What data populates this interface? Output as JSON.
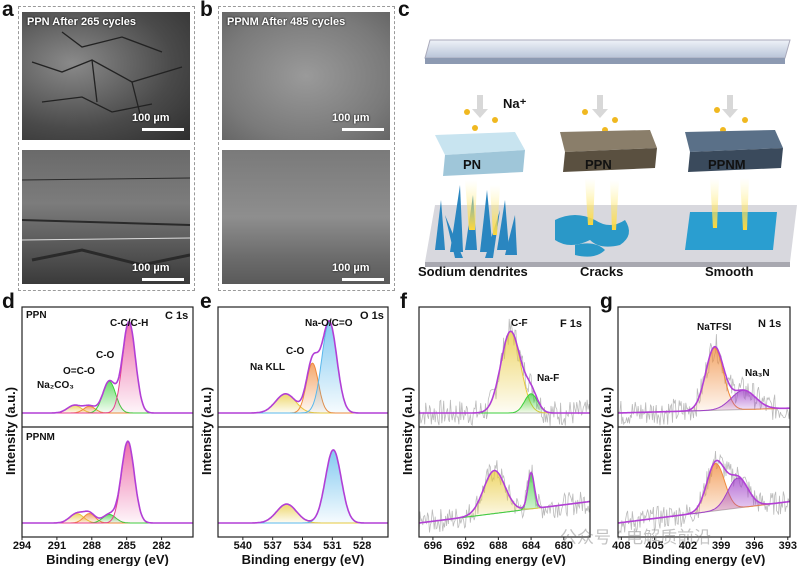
{
  "panels": {
    "a": "a",
    "b": "b",
    "c": "c",
    "d": "d",
    "e": "e",
    "f": "f",
    "g": "g"
  },
  "sem": {
    "a_title": "PPN After 265 cycles",
    "b_title": "PPNM After 485 cycles",
    "scale": "100 µm"
  },
  "schematic": {
    "ion": "Na⁺",
    "membranes": [
      "PN",
      "PPN",
      "PPNM"
    ],
    "outcomes": [
      "Sodium dendrites",
      "Cracks",
      "Smooth"
    ]
  },
  "watermark": "公众号 · 电解质前沿",
  "colors": {
    "envelope": "#b23fd6",
    "yellow": "#e8c93a",
    "orange": "#f08a3a",
    "green": "#3ccf3c",
    "pink": "#e8408f",
    "blue": "#5ab8ec",
    "purple": "#a040c8",
    "raw": "#bbbbbb"
  },
  "chart_data": [
    {
      "id": "d",
      "type": "line",
      "title": "C 1s",
      "xlabel": "Binding energy (eV)",
      "ylabel": "Intensity (a.u.)",
      "xlim": [
        294,
        279.3
      ],
      "ticks": [
        "294",
        "291",
        "288",
        "285",
        "282"
      ],
      "tickvals": [
        294,
        291,
        288,
        285,
        282
      ],
      "samples": [
        {
          "name": "PPN",
          "components": [
            {
              "label": "Na2CO3",
              "center": 289.5,
              "height": 0.08,
              "sigma": 0.6,
              "color": "yellow"
            },
            {
              "label": "O=C-O",
              "center": 288.2,
              "height": 0.07,
              "sigma": 0.5,
              "color": "orange"
            },
            {
              "label": "C-O",
              "center": 286.5,
              "height": 0.33,
              "sigma": 0.55,
              "color": "green"
            },
            {
              "label": "C-C/C-H",
              "center": 284.8,
              "height": 0.95,
              "sigma": 0.55,
              "color": "pink"
            }
          ],
          "noise": false,
          "slope": 0
        },
        {
          "name": "PPNM",
          "components": [
            {
              "label": "Na2CO3",
              "center": 289.3,
              "height": 0.11,
              "sigma": 0.6,
              "color": "yellow"
            },
            {
              "label": "O=C-O",
              "center": 288.2,
              "height": 0.11,
              "sigma": 0.5,
              "color": "orange"
            },
            {
              "label": "C-O",
              "center": 286.5,
              "height": 0.1,
              "sigma": 0.55,
              "color": "green"
            },
            {
              "label": "C-C/C-H",
              "center": 284.9,
              "height": 0.95,
              "sigma": 0.55,
              "color": "pink"
            }
          ],
          "noise": false,
          "slope": 0
        }
      ]
    },
    {
      "id": "e",
      "type": "line",
      "title": "O 1s",
      "xlabel": "Binding energy (eV)",
      "ylabel": "Intensity (a.u.)",
      "xlim": [
        542.5,
        525.4
      ],
      "ticks": [
        "540",
        "537",
        "534",
        "531",
        "528"
      ],
      "tickvals": [
        540,
        537,
        534,
        531,
        528
      ],
      "samples": [
        {
          "name": "PPN",
          "components": [
            {
              "label": "Na KLL",
              "center": 535.7,
              "height": 0.2,
              "sigma": 1.0,
              "color": "yellow"
            },
            {
              "label": "C-O",
              "center": 533.0,
              "height": 0.52,
              "sigma": 0.6,
              "color": "orange"
            },
            {
              "label": "Na-O/C=O",
              "center": 531.3,
              "height": 0.95,
              "sigma": 0.75,
              "color": "blue"
            }
          ],
          "noise": false,
          "slope": 0
        },
        {
          "name": "PPNM",
          "components": [
            {
              "label": "Na KLL",
              "center": 535.6,
              "height": 0.22,
              "sigma": 1.0,
              "color": "yellow"
            },
            {
              "label": "Na-O/C=O",
              "center": 530.9,
              "height": 0.85,
              "sigma": 0.8,
              "color": "blue"
            }
          ],
          "noise": false,
          "slope": 0
        }
      ]
    },
    {
      "id": "f",
      "type": "line",
      "title": "F 1s",
      "xlabel": "Binding energy (eV)",
      "ylabel": "Intensity (a.u.)",
      "xlim": [
        697.7,
        676.8
      ],
      "ticks": [
        "696",
        "692",
        "688",
        "684",
        "680"
      ],
      "tickvals": [
        696,
        692,
        688,
        684,
        680
      ],
      "samples": [
        {
          "name": "PPN",
          "components": [
            {
              "label": "C-F",
              "center": 686.5,
              "height": 0.85,
              "sigma": 1.2,
              "color": "yellow"
            },
            {
              "label": "Na-F",
              "center": 684.0,
              "height": 0.2,
              "sigma": 0.8,
              "color": "green"
            }
          ],
          "noise": true,
          "slope": 0
        },
        {
          "name": "PPNM",
          "components": [
            {
              "label": "C-F",
              "center": 688.5,
              "height": 0.5,
              "sigma": 1.3,
              "color": "yellow"
            },
            {
              "label": "Na-F",
              "center": 684.0,
              "height": 0.42,
              "sigma": 0.4,
              "color": "green"
            }
          ],
          "noise": true,
          "slope": 0.25
        }
      ]
    },
    {
      "id": "g",
      "type": "line",
      "title": "N 1s",
      "xlabel": "Binding energy (eV)",
      "ylabel": "Intensity (a.u.)",
      "xlim": [
        408.3,
        392.8
      ],
      "ticks": [
        "408",
        "405",
        "402",
        "399",
        "396",
        "393"
      ],
      "tickvals": [
        408,
        405,
        402,
        399,
        396,
        393
      ],
      "samples": [
        {
          "name": "PPN",
          "components": [
            {
              "label": "NaTFSI",
              "center": 399.6,
              "height": 0.65,
              "sigma": 0.8,
              "color": "orange"
            },
            {
              "label": "Na3N",
              "center": 397.0,
              "height": 0.2,
              "sigma": 1.1,
              "color": "purple"
            }
          ],
          "noise": true,
          "slope": 0.05
        },
        {
          "name": "PPNM",
          "components": [
            {
              "label": "NaTFSI",
              "center": 399.5,
              "height": 0.55,
              "sigma": 0.8,
              "color": "orange"
            },
            {
              "label": "Na3N",
              "center": 397.5,
              "height": 0.35,
              "sigma": 0.9,
              "color": "purple"
            }
          ],
          "noise": true,
          "slope": 0.25
        }
      ]
    }
  ],
  "annotations": {
    "d": {
      "top": "PPN",
      "bottom": "PPNM",
      "peaks": [
        "Na₂CO₃",
        "O=C-O",
        "C-O",
        "C-C/C-H"
      ]
    },
    "e": {
      "peaks": [
        "Na KLL",
        "C-O",
        "Na-O/C=O"
      ]
    },
    "f": {
      "peaks": [
        "C-F",
        "Na-F"
      ]
    },
    "g": {
      "peaks": [
        "NaTFSI",
        "Na₃N"
      ]
    }
  }
}
